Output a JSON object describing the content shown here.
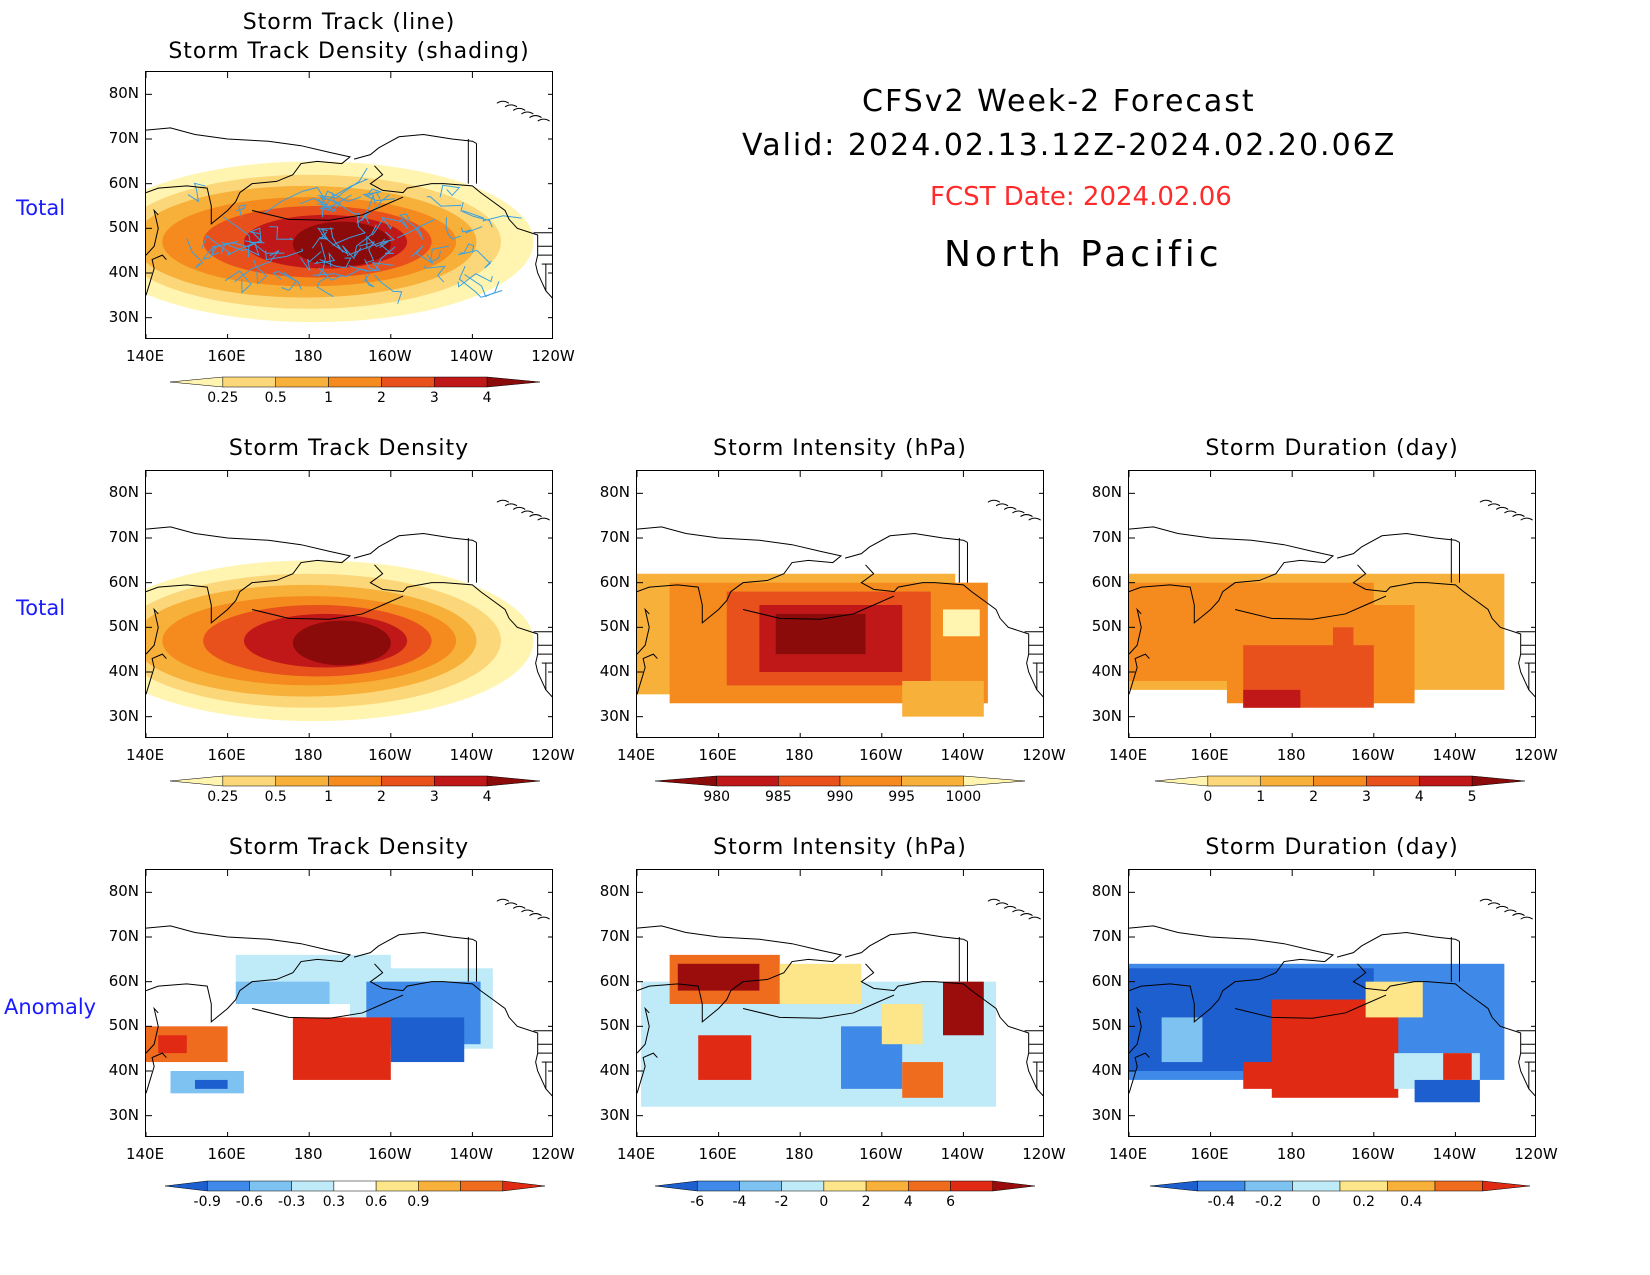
{
  "header": {
    "line1": "CFSv2 Week-2 Forecast",
    "line2": "Valid: 2024.02.13.12Z-2024.02.20.06Z",
    "fcst_date": "FCST Date: 2024.02.06",
    "region": "North Pacific"
  },
  "row_labels": [
    "Total",
    "Total",
    "Anomaly"
  ],
  "axes": {
    "x_ticks": [
      "140E",
      "160E",
      "180",
      "160W",
      "140W",
      "120W"
    ],
    "y_ticks": [
      "80N",
      "70N",
      "60N",
      "50N",
      "40N",
      "30N"
    ]
  },
  "panels": [
    {
      "id": "top",
      "title_line1": "Storm Track (line)",
      "title_line2": "Storm Track Density (shading)"
    },
    {
      "id": "r1c1",
      "title": "Storm Track Density"
    },
    {
      "id": "r1c2",
      "title": "Storm Intensity (hPa)"
    },
    {
      "id": "r1c3",
      "title": "Storm Duration (day)"
    },
    {
      "id": "r2c1",
      "title": "Storm Track Density"
    },
    {
      "id": "r2c2",
      "title": "Storm Intensity (hPa)"
    },
    {
      "id": "r2c3",
      "title": "Storm Duration (day)"
    }
  ],
  "colorbars": {
    "density": {
      "labels": [
        "0.25",
        "0.5",
        "1",
        "2",
        "3",
        "4"
      ],
      "colors": [
        "#fff5b0",
        "#fcd77a",
        "#f7b13a",
        "#f58a1f",
        "#e8501c",
        "#c01818",
        "#8b0a0a"
      ]
    },
    "intensity": {
      "labels": [
        "980",
        "985",
        "990",
        "995",
        "1000"
      ],
      "colors": [
        "#8b0a0a",
        "#c01818",
        "#e8501c",
        "#f58a1f",
        "#f7b13a",
        "#fff5b0"
      ]
    },
    "duration": {
      "labels": [
        "0",
        "1",
        "2",
        "3",
        "4",
        "5"
      ],
      "colors": [
        "#fff5b0",
        "#fcd77a",
        "#f7b13a",
        "#f58a1f",
        "#e8501c",
        "#c01818",
        "#8b0a0a"
      ]
    },
    "anom_density": {
      "labels": [
        "-0.9",
        "-0.6",
        "-0.3",
        "0.3",
        "0.6",
        "0.9"
      ],
      "colors": [
        "#1e5fd0",
        "#3f8ae8",
        "#7ec2f2",
        "#bfeaf7",
        "#ffffff",
        "#fde589",
        "#f7b13a",
        "#ef6b1e",
        "#e02a14"
      ]
    },
    "anom_intensity": {
      "labels": [
        "-6",
        "-4",
        "-2",
        "0",
        "2",
        "4",
        "6"
      ],
      "colors": [
        "#1e5fd0",
        "#3f8ae8",
        "#7ec2f2",
        "#bfeaf7",
        "#fde589",
        "#f7b13a",
        "#ef6b1e",
        "#e02a14",
        "#9b0d0d"
      ]
    },
    "anom_duration": {
      "labels": [
        "-0.4",
        "-0.2",
        "0",
        "0.2",
        "0.4"
      ],
      "colors": [
        "#1e5fd0",
        "#3f8ae8",
        "#7ec2f2",
        "#bfeaf7",
        "#fde589",
        "#f7b13a",
        "#ef6b1e",
        "#e02a14"
      ]
    }
  }
}
